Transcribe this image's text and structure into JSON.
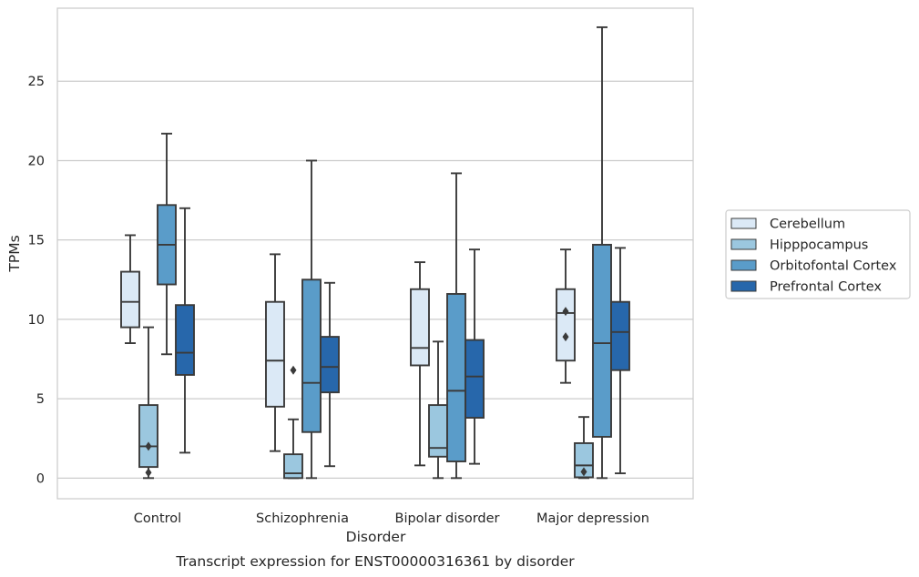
{
  "chart_data": {
    "type": "box",
    "xlabel": "Disorder",
    "ylabel": "TPMs",
    "caption": "Transcript expression for ENST00000316361 by disorder",
    "categories": [
      "Control",
      "Schizophrenia",
      "Bipolar disorder",
      "Major depression"
    ],
    "ylim": [
      -1.3,
      29.6
    ],
    "yticks": [
      0,
      5,
      10,
      15,
      20,
      25
    ],
    "grid": true,
    "legend_position": "right",
    "series": [
      {
        "name": "Cerebellum",
        "color": "#dbe9f6",
        "boxes": [
          {
            "whisker_low": 8.5,
            "q1": 9.5,
            "median": 11.1,
            "q3": 13.0,
            "whisker_high": 15.3,
            "outliers": []
          },
          {
            "whisker_low": 1.7,
            "q1": 4.5,
            "median": 7.4,
            "q3": 11.1,
            "whisker_high": 14.1,
            "outliers": []
          },
          {
            "whisker_low": 0.8,
            "q1": 7.1,
            "median": 8.2,
            "q3": 11.9,
            "whisker_high": 13.6,
            "outliers": []
          },
          {
            "whisker_low": 6.0,
            "q1": 7.4,
            "median": 10.4,
            "q3": 11.9,
            "whisker_high": 14.4,
            "outliers": [
              10.5,
              8.9
            ]
          }
        ]
      },
      {
        "name": "Hipppocampus",
        "color": "#9bc7df",
        "boxes": [
          {
            "whisker_low": 0.0,
            "q1": 0.7,
            "median": 2.0,
            "q3": 4.6,
            "whisker_high": 9.5,
            "outliers": [
              2.0,
              0.35
            ]
          },
          {
            "whisker_low": 0.0,
            "q1": 0.0,
            "median": 0.3,
            "q3": 1.5,
            "whisker_high": 3.7,
            "outliers": [
              6.8
            ]
          },
          {
            "whisker_low": 0.0,
            "q1": 1.35,
            "median": 1.9,
            "q3": 4.6,
            "whisker_high": 8.6,
            "outliers": []
          },
          {
            "whisker_low": 0.0,
            "q1": 0.05,
            "median": 0.8,
            "q3": 2.2,
            "whisker_high": 3.85,
            "outliers": [
              0.4
            ]
          }
        ]
      },
      {
        "name": "Orbitofontal Cortex",
        "color": "#5a9cc9",
        "boxes": [
          {
            "whisker_low": 7.8,
            "q1": 12.2,
            "median": 14.7,
            "q3": 17.2,
            "whisker_high": 21.7,
            "outliers": []
          },
          {
            "whisker_low": 0.0,
            "q1": 2.9,
            "median": 6.0,
            "q3": 12.5,
            "whisker_high": 20.0,
            "outliers": []
          },
          {
            "whisker_low": 0.0,
            "q1": 1.05,
            "median": 5.5,
            "q3": 11.6,
            "whisker_high": 19.2,
            "outliers": []
          },
          {
            "whisker_low": 0.0,
            "q1": 2.6,
            "median": 8.5,
            "q3": 14.7,
            "whisker_high": 28.4,
            "outliers": []
          }
        ]
      },
      {
        "name": "Prefrontal Cortex",
        "color": "#2767ab",
        "boxes": [
          {
            "whisker_low": 1.6,
            "q1": 6.5,
            "median": 7.9,
            "q3": 10.9,
            "whisker_high": 17.0,
            "outliers": []
          },
          {
            "whisker_low": 0.75,
            "q1": 5.4,
            "median": 7.0,
            "q3": 8.9,
            "whisker_high": 12.3,
            "outliers": []
          },
          {
            "whisker_low": 0.9,
            "q1": 3.8,
            "median": 6.4,
            "q3": 8.7,
            "whisker_high": 14.4,
            "outliers": []
          },
          {
            "whisker_low": 0.3,
            "q1": 6.8,
            "median": 9.2,
            "q3": 11.1,
            "whisker_high": 14.5,
            "outliers": []
          }
        ]
      }
    ]
  },
  "style": {
    "line_color": "#3a3a3a",
    "grid_color": "#cccccc",
    "frame_color": "#cccccc"
  }
}
